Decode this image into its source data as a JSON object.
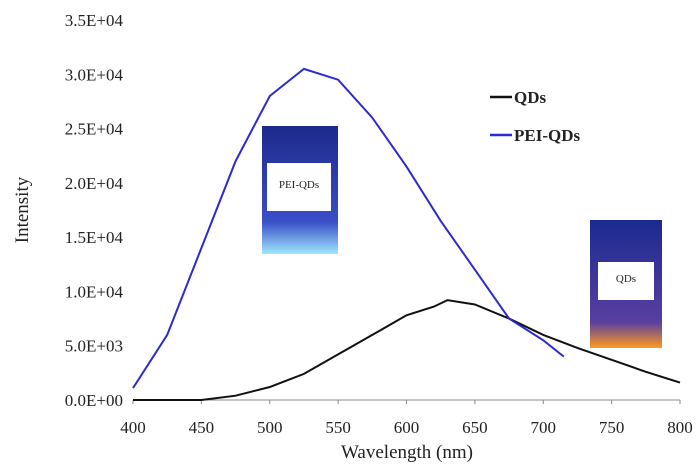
{
  "chart_data": {
    "type": "line",
    "xlabel": "Wavelength (nm)",
    "ylabel": "Intensity",
    "xlim": [
      400,
      800
    ],
    "xticks": [
      400,
      450,
      500,
      550,
      600,
      650,
      700,
      750,
      800
    ],
    "ylim": [
      0,
      35000
    ],
    "yticks": [
      {
        "value": 0,
        "label": "0.0E+00"
      },
      {
        "value": 5000,
        "label": "5.0E+03"
      },
      {
        "value": 10000,
        "label": "1.0E+04"
      },
      {
        "value": 15000,
        "label": "1.5E+04"
      },
      {
        "value": 20000,
        "label": "2.0E+04"
      },
      {
        "value": 25000,
        "label": "2.5E+04"
      },
      {
        "value": 30000,
        "label": "3.0E+04"
      },
      {
        "value": 35000,
        "label": "3.5E+04"
      }
    ],
    "series": [
      {
        "name": "QDs",
        "color": "#111111",
        "x": [
          400,
          450,
          475,
          500,
          525,
          550,
          575,
          600,
          620,
          630,
          650,
          675,
          700,
          725,
          750,
          775,
          800
        ],
        "values": [
          0,
          0,
          400,
          1200,
          2400,
          4200,
          6000,
          7800,
          8600,
          9200,
          8800,
          7500,
          6000,
          4800,
          3700,
          2600,
          1600
        ]
      },
      {
        "name": "PEI-QDs",
        "color": "#2b2bd0",
        "x": [
          400,
          425,
          450,
          475,
          500,
          525,
          550,
          575,
          600,
          625,
          650,
          675,
          700,
          715
        ],
        "values": [
          1100,
          6000,
          14000,
          22000,
          28000,
          30500,
          29500,
          26000,
          21500,
          16500,
          12000,
          7500,
          5500,
          4000
        ]
      }
    ],
    "legend": "upper right",
    "annotations": [
      "PEI-QDs",
      "QDs"
    ]
  }
}
